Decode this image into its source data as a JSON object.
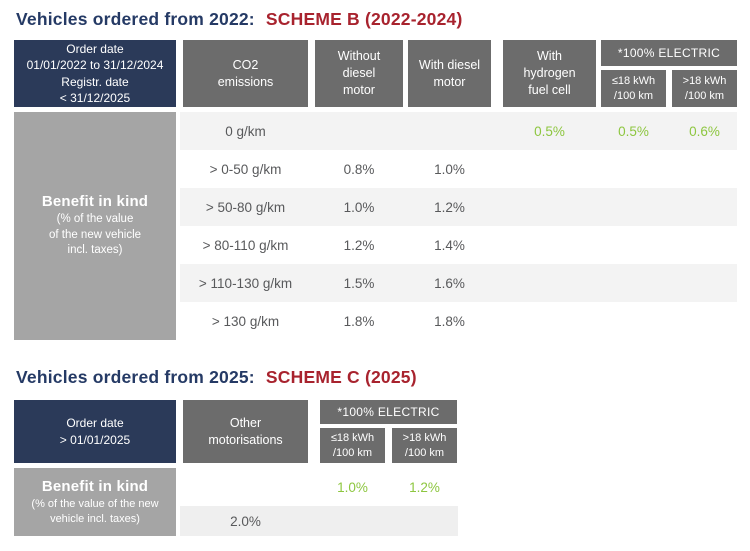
{
  "colors": {
    "title_navy": "#253a65",
    "title_red": "#a8232e",
    "header_navy": "#2b3a59",
    "header_gray": "#6c6c6c",
    "benefit_gray": "#a5a5a5",
    "row_stripe": "#f3f3f3",
    "body_text": "#58595b",
    "green_value": "#8dc63f"
  },
  "scheme_b": {
    "title_prefix": "Vehicles ordered from 2022:",
    "title_scheme": "SCHEME B (2022-2024)",
    "header": {
      "order_date": "Order date\n01/01/2022 to 31/12/2024\nRegistr. date\n< 31/12/2025",
      "co2": "CO2\nemissions",
      "without_diesel": "Without\ndiesel\nmotor",
      "with_diesel": "With diesel\nmotor",
      "hydrogen": "With\nhydrogen\nfuel cell",
      "electric": "*100% ELECTRIC",
      "le18": "≤18 kWh\n/100 km",
      "gt18": ">18 kWh\n/100 km"
    },
    "benefit_title": "Benefit in kind",
    "benefit_note": "(% of the value\nof the new vehicle\nincl. taxes)",
    "rows": [
      {
        "co2": "0 g/km",
        "without": "",
        "with": "",
        "hydrogen": "0.5%",
        "le18": "0.5%",
        "gt18": "0.6%"
      },
      {
        "co2": "> 0-50 g/km",
        "without": "0.8%",
        "with": "1.0%",
        "hydrogen": "",
        "le18": "",
        "gt18": ""
      },
      {
        "co2": "> 50-80 g/km",
        "without": "1.0%",
        "with": "1.2%",
        "hydrogen": "",
        "le18": "",
        "gt18": ""
      },
      {
        "co2": "> 80-110 g/km",
        "without": "1.2%",
        "with": "1.4%",
        "hydrogen": "",
        "le18": "",
        "gt18": ""
      },
      {
        "co2": "> 110-130 g/km",
        "without": "1.5%",
        "with": "1.6%",
        "hydrogen": "",
        "le18": "",
        "gt18": ""
      },
      {
        "co2": "> 130 g/km",
        "without": "1.8%",
        "with": "1.8%",
        "hydrogen": "",
        "le18": "",
        "gt18": ""
      }
    ]
  },
  "scheme_c": {
    "title_prefix": "Vehicles ordered from 2025:",
    "title_scheme": "SCHEME C (2025)",
    "header": {
      "order_date": "Order date\n> 01/01/2025",
      "other": "Other\nmotorisations",
      "electric": "*100% ELECTRIC",
      "le18": "≤18 kWh\n/100 km",
      "gt18": ">18 kWh\n/100 km"
    },
    "benefit_title": "Benefit in kind",
    "benefit_note": "(% of the value of the new\nvehicle incl. taxes)",
    "rows": [
      {
        "other": "",
        "le18": "1.0%",
        "gt18": "1.2%"
      },
      {
        "other": "2.0%",
        "le18": "",
        "gt18": ""
      }
    ]
  }
}
